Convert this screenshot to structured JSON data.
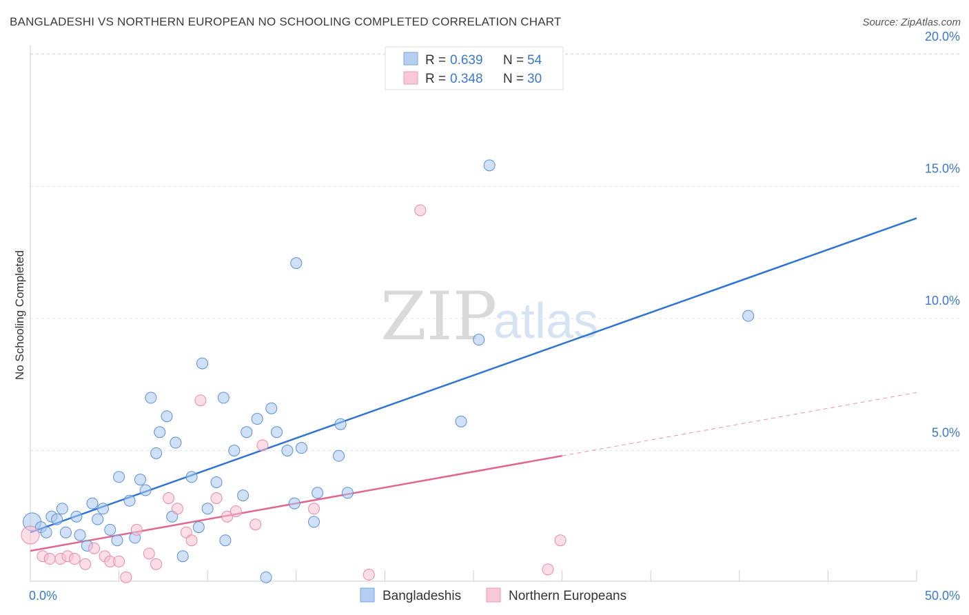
{
  "title": "BANGLADESHI VS NORTHERN EUROPEAN NO SCHOOLING COMPLETED CORRELATION CHART",
  "source": "Source: ZipAtlas.com",
  "watermark": {
    "zip": "ZIP",
    "atlas": "atlas"
  },
  "chart_data": {
    "type": "scatter",
    "title": "BANGLADESHI VS NORTHERN EUROPEAN NO SCHOOLING COMPLETED CORRELATION CHART",
    "xlabel": "",
    "ylabel": "No Schooling Completed",
    "xlim": [
      0,
      50
    ],
    "ylim": [
      0,
      21
    ],
    "x_tick_labels": [
      "0.0%",
      "50.0%"
    ],
    "y_ticks": [
      5,
      10,
      15,
      20
    ],
    "y_tick_labels": [
      "5.0%",
      "10.0%",
      "15.0%",
      "20.0%"
    ],
    "grid": true,
    "legend_stats": [
      {
        "r_label": "R = ",
        "r": "0.639",
        "n_label": "N = ",
        "n": "54"
      },
      {
        "r_label": "R = ",
        "r": "0.348",
        "n_label": "N = ",
        "n": "30"
      }
    ],
    "series": [
      {
        "name": "Bangladeshis",
        "color": "#a9c7f0",
        "stroke": "#5b8fd6",
        "trend_color": "#2f74d0",
        "trend": {
          "x0": 0,
          "y0": 1.9,
          "x1": 50,
          "y1": 13.8
        },
        "points": [
          [
            0.1,
            2.3
          ],
          [
            0.6,
            2.1
          ],
          [
            0.9,
            1.9
          ],
          [
            1.2,
            2.5
          ],
          [
            1.5,
            2.4
          ],
          [
            1.8,
            2.8
          ],
          [
            2.0,
            1.9
          ],
          [
            2.6,
            2.5
          ],
          [
            2.8,
            1.8
          ],
          [
            3.2,
            1.4
          ],
          [
            3.5,
            3.0
          ],
          [
            3.8,
            2.4
          ],
          [
            4.1,
            2.8
          ],
          [
            4.5,
            2.0
          ],
          [
            4.9,
            1.6
          ],
          [
            5.0,
            4.0
          ],
          [
            5.6,
            3.1
          ],
          [
            5.9,
            1.7
          ],
          [
            6.2,
            3.9
          ],
          [
            6.5,
            3.5
          ],
          [
            6.8,
            7.0
          ],
          [
            7.1,
            4.9
          ],
          [
            7.3,
            5.7
          ],
          [
            7.7,
            6.3
          ],
          [
            8.0,
            2.5
          ],
          [
            8.2,
            5.3
          ],
          [
            8.6,
            1.0
          ],
          [
            9.1,
            4.0
          ],
          [
            9.5,
            2.1
          ],
          [
            9.7,
            8.3
          ],
          [
            10.0,
            2.8
          ],
          [
            10.5,
            3.8
          ],
          [
            10.9,
            7.0
          ],
          [
            11.0,
            1.6
          ],
          [
            11.5,
            5.0
          ],
          [
            12.0,
            3.3
          ],
          [
            12.2,
            5.7
          ],
          [
            12.8,
            6.2
          ],
          [
            13.3,
            0.2
          ],
          [
            13.6,
            6.6
          ],
          [
            13.9,
            5.7
          ],
          [
            14.5,
            5.0
          ],
          [
            14.9,
            3.0
          ],
          [
            15.0,
            12.1
          ],
          [
            15.3,
            5.1
          ],
          [
            16.0,
            2.3
          ],
          [
            16.2,
            3.4
          ],
          [
            17.4,
            4.8
          ],
          [
            17.5,
            6.0
          ],
          [
            17.9,
            3.4
          ],
          [
            24.3,
            6.1
          ],
          [
            25.3,
            9.2
          ],
          [
            25.9,
            15.8
          ],
          [
            40.5,
            10.1
          ]
        ]
      },
      {
        "name": "Northern Europeans",
        "color": "#f7c1d2",
        "stroke": "#e68aa8",
        "trend_color": "#e0668e",
        "trend": {
          "x0": 0,
          "y0": 1.2,
          "x1": 30,
          "y1": 4.8
        },
        "trend_dashed": {
          "x0": 30,
          "y0": 4.8,
          "x1": 50,
          "y1": 7.2
        },
        "points": [
          [
            0.0,
            1.8
          ],
          [
            0.7,
            1.0
          ],
          [
            1.1,
            0.9
          ],
          [
            1.7,
            0.9
          ],
          [
            2.1,
            1.0
          ],
          [
            2.5,
            0.9
          ],
          [
            3.1,
            0.7
          ],
          [
            3.6,
            1.3
          ],
          [
            4.2,
            1.0
          ],
          [
            4.5,
            0.8
          ],
          [
            5.0,
            0.8
          ],
          [
            5.4,
            0.2
          ],
          [
            6.0,
            2.0
          ],
          [
            6.7,
            1.1
          ],
          [
            7.1,
            0.7
          ],
          [
            7.8,
            3.2
          ],
          [
            8.3,
            2.8
          ],
          [
            8.8,
            1.9
          ],
          [
            9.1,
            1.6
          ],
          [
            9.6,
            6.9
          ],
          [
            10.5,
            3.2
          ],
          [
            11.1,
            2.5
          ],
          [
            11.6,
            2.7
          ],
          [
            12.7,
            2.2
          ],
          [
            13.1,
            5.2
          ],
          [
            16.0,
            2.8
          ],
          [
            19.1,
            0.3
          ],
          [
            22.0,
            14.1
          ],
          [
            29.2,
            0.5
          ],
          [
            29.9,
            1.6
          ]
        ]
      }
    ]
  }
}
